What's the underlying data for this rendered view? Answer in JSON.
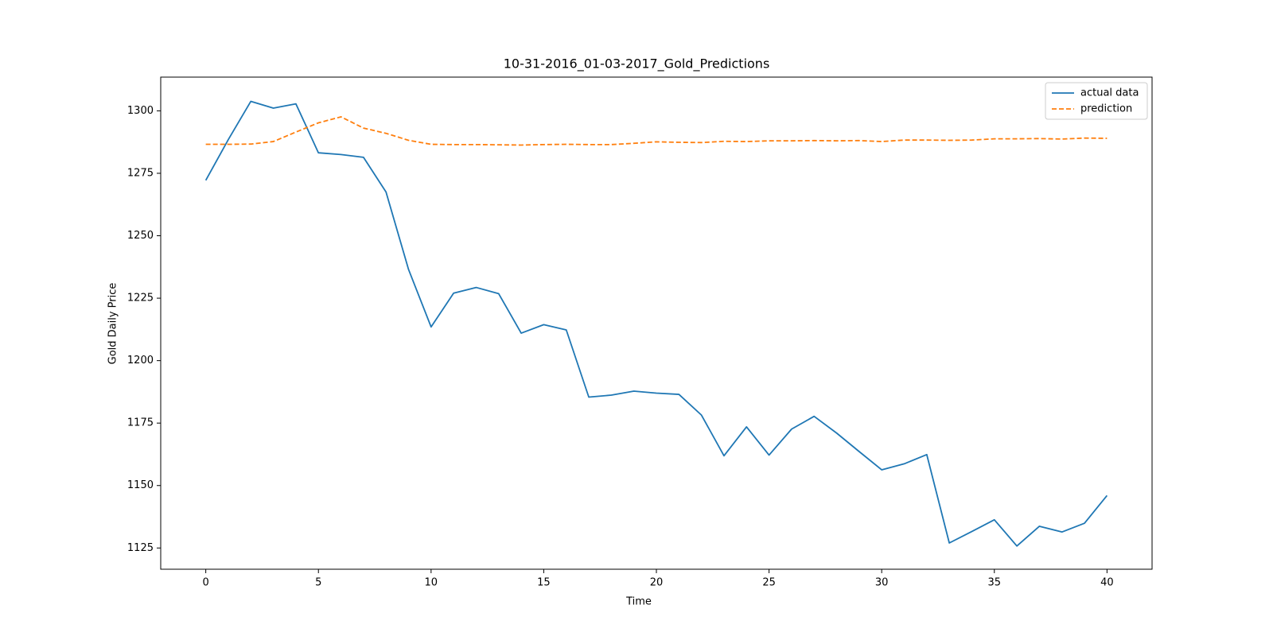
{
  "chart_data": {
    "type": "line",
    "title": "10-31-2016_01-03-2017_Gold_Predictions",
    "xlabel": "Time",
    "ylabel": "Gold Daily Price",
    "xlim": [
      -2,
      42
    ],
    "ylim": [
      1116.5,
      1313.5
    ],
    "xticks": [
      0,
      5,
      10,
      15,
      20,
      25,
      30,
      35,
      40
    ],
    "yticks": [
      1125,
      1150,
      1175,
      1200,
      1225,
      1250,
      1275,
      1300
    ],
    "grid": false,
    "legend_position": "upper-right",
    "x": [
      0,
      1,
      2,
      3,
      4,
      5,
      6,
      7,
      8,
      9,
      10,
      11,
      12,
      13,
      14,
      15,
      16,
      17,
      18,
      19,
      20,
      21,
      22,
      23,
      24,
      25,
      26,
      27,
      28,
      29,
      30,
      31,
      32,
      33,
      34,
      35,
      36,
      37,
      38,
      39,
      40
    ],
    "series": [
      {
        "name": "actual data",
        "color": "#1f77b4",
        "dash": "solid",
        "values": [
          1272.2,
          1288.5,
          1303.8,
          1301.1,
          1302.8,
          1283.2,
          1282.5,
          1281.4,
          1267.5,
          1236.5,
          1213.5,
          1227.0,
          1229.3,
          1226.8,
          1211.0,
          1214.4,
          1212.3,
          1185.4,
          1186.2,
          1187.8,
          1187.0,
          1186.5,
          1178.2,
          1161.9,
          1173.5,
          1162.2,
          1172.6,
          1177.7,
          1171.0,
          1163.6,
          1156.3,
          1158.7,
          1162.4,
          1127.0,
          1131.6,
          1136.3,
          1125.8,
          1133.7,
          1131.4,
          1134.9,
          1146.0
        ]
      },
      {
        "name": "prediction",
        "color": "#ff7f0e",
        "dash": "dashed",
        "values": [
          1286.6,
          1286.6,
          1286.7,
          1287.7,
          1291.5,
          1295.2,
          1297.6,
          1293.1,
          1291.0,
          1288.2,
          1286.6,
          1286.5,
          1286.5,
          1286.4,
          1286.3,
          1286.5,
          1286.6,
          1286.5,
          1286.5,
          1287.0,
          1287.6,
          1287.4,
          1287.3,
          1287.8,
          1287.7,
          1288.0,
          1288.0,
          1288.1,
          1288.0,
          1288.1,
          1287.7,
          1288.3,
          1288.3,
          1288.2,
          1288.3,
          1288.8,
          1288.8,
          1288.9,
          1288.7,
          1289.1,
          1289.0
        ]
      }
    ]
  }
}
